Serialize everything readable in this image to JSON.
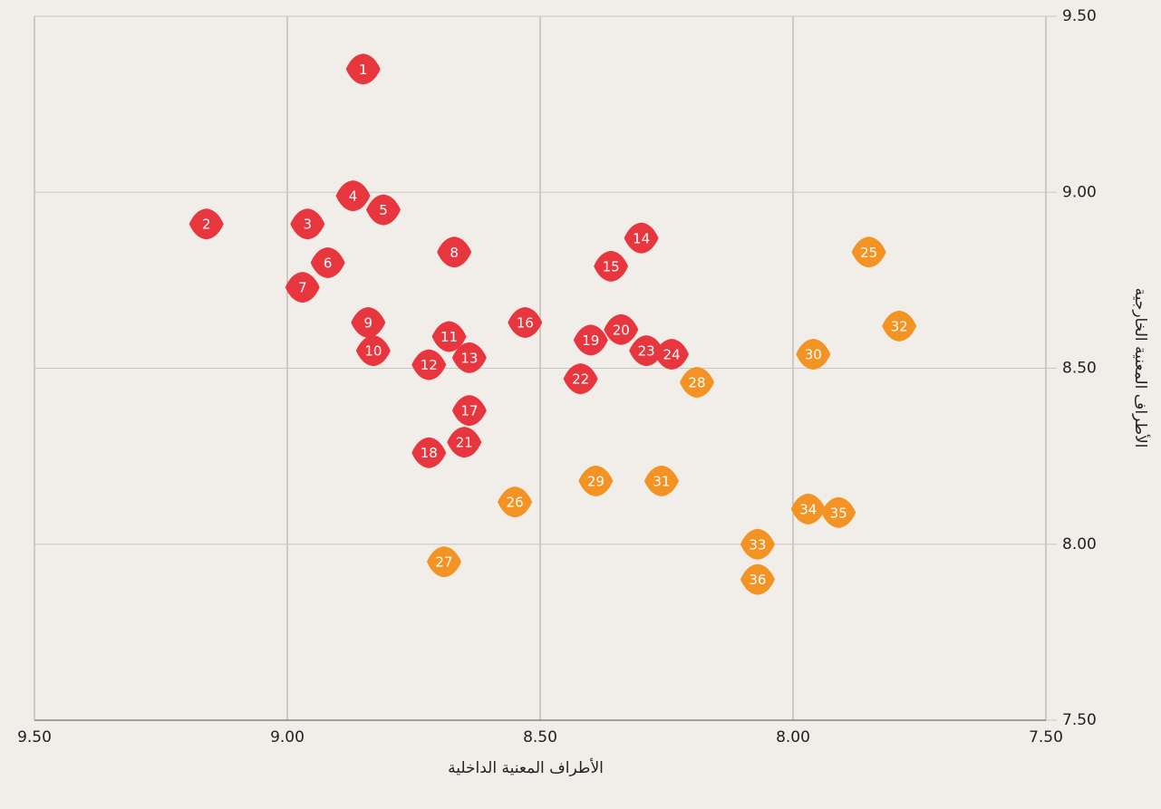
{
  "chart_data": {
    "type": "scatter",
    "x_label": "الأطراف المعنية الداخلية",
    "y_label": "الأطراف المعنية الخارجية",
    "xlim": [
      9.5,
      7.5
    ],
    "xticks": [
      {
        "value": 9.5,
        "label": "9.50"
      },
      {
        "value": 9,
        "label": "9.00"
      },
      {
        "value": 8.5,
        "label": "8.50"
      },
      {
        "value": 8,
        "label": "8.00"
      },
      {
        "value": 7.5,
        "label": "7.50"
      }
    ],
    "ylim": [
      7.5,
      9.5
    ],
    "yticks": [
      {
        "value": 7.5,
        "label": "7.50"
      },
      {
        "value": 8,
        "label": "8.00"
      },
      {
        "value": 8.5,
        "label": "8.50"
      },
      {
        "value": 9,
        "label": "9.00"
      },
      {
        "value": 9.5,
        "label": "9.50"
      }
    ],
    "grid": true,
    "series": [
      {
        "color": "#e8363f",
        "labels": [
          "1",
          "2",
          "3",
          "4",
          "5",
          "6",
          "7",
          "8",
          "9",
          "10",
          "11",
          "12",
          "13",
          "14",
          "15",
          "16",
          "17",
          "18",
          "19",
          "20",
          "21",
          "22",
          "23",
          "24"
        ],
        "x": [
          8.85,
          9.16,
          8.96,
          8.87,
          8.81,
          8.92,
          8.97,
          8.67,
          8.84,
          8.83,
          8.68,
          8.72,
          8.64,
          8.3,
          8.36,
          8.53,
          8.64,
          8.72,
          8.4,
          8.34,
          8.65,
          8.42,
          8.29,
          8.24
        ],
        "values": [
          9.35,
          8.91,
          8.91,
          8.99,
          8.95,
          8.8,
          8.73,
          8.83,
          8.63,
          8.55,
          8.59,
          8.51,
          8.53,
          8.87,
          8.79,
          8.63,
          8.38,
          8.26,
          8.58,
          8.61,
          8.29,
          8.47,
          8.55,
          8.54
        ]
      },
      {
        "color": "#f39323",
        "labels": [
          "25",
          "26",
          "27",
          "28",
          "29",
          "30",
          "31",
          "32",
          "33",
          "34",
          "35",
          "36"
        ],
        "x": [
          7.85,
          8.55,
          8.69,
          8.19,
          8.39,
          7.96,
          8.26,
          7.79,
          8.07,
          7.97,
          7.91,
          8.07
        ],
        "values": [
          8.83,
          8.12,
          7.95,
          8.46,
          8.18,
          8.54,
          8.18,
          8.62,
          8.0,
          8.1,
          8.09,
          7.9
        ]
      }
    ]
  }
}
